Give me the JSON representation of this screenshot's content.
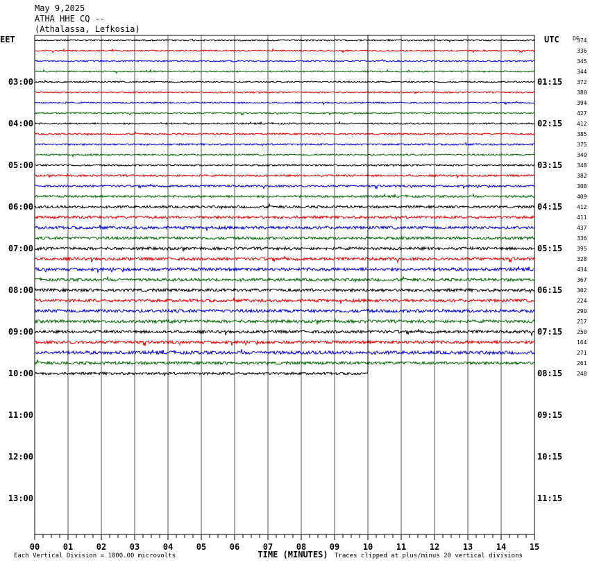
{
  "header": {
    "date": "May 9,2025",
    "station": "ATHA HHE CQ --",
    "location": "(Athalassa, Lefkosia)"
  },
  "chart_data": {
    "type": "line",
    "subtype": "helicorder",
    "left_timezone": "EET",
    "right_timezone": "UTC",
    "dc_label": "DC",
    "xlabel": "TIME (MINUTES)",
    "x_ticks": [
      "00",
      "01",
      "02",
      "03",
      "04",
      "05",
      "06",
      "07",
      "08",
      "09",
      "10",
      "11",
      "12",
      "13",
      "14",
      "15"
    ],
    "xlim": [
      0,
      15
    ],
    "left_hour_labels": [
      "03:00",
      "04:00",
      "05:00",
      "06:00",
      "07:00",
      "08:00",
      "09:00",
      "10:00",
      "11:00",
      "12:00",
      "13:00"
    ],
    "right_hour_labels": [
      "01:15",
      "02:15",
      "03:15",
      "04:15",
      "05:15",
      "06:15",
      "07:15",
      "08:15",
      "09:15",
      "10:15",
      "11:15"
    ],
    "rows_total": 48,
    "trace_colors": [
      "#000000",
      "#dd0000",
      "#0000cc",
      "#006600"
    ],
    "dc_offsets": [
      374,
      336,
      345,
      344,
      372,
      380,
      394,
      427,
      412,
      385,
      375,
      349,
      348,
      382,
      308,
      409,
      412,
      411,
      437,
      336,
      395,
      328,
      434,
      367,
      302,
      224,
      290,
      217,
      250,
      164,
      271,
      261,
      248
    ],
    "amplitudes": [
      1.0,
      1.0,
      1.0,
      1.0,
      1.0,
      1.0,
      1.0,
      1.0,
      1.1,
      1.1,
      1.2,
      1.1,
      1.2,
      1.3,
      1.4,
      1.5,
      1.7,
      1.8,
      2.0,
      1.9,
      2.0,
      2.0,
      2.1,
      2.0,
      2.1,
      2.0,
      2.2,
      2.1,
      2.0,
      2.1,
      2.2,
      2.0,
      1.8
    ],
    "last_trace_end_minute": 10,
    "footer_left": "Each Vertical Division = 1000.00 microvolts",
    "footer_right": "Traces clipped at plus/minus 20 vertical divisions"
  }
}
